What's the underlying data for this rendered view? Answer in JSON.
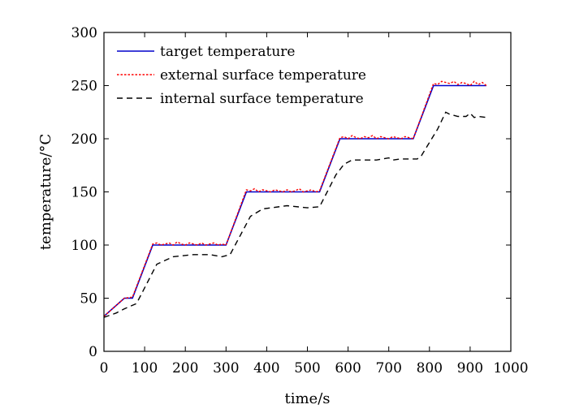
{
  "chart_data": {
    "type": "line",
    "xlabel": "time/s",
    "ylabel": "temperature/°C",
    "xlim": [
      0,
      1000
    ],
    "ylim": [
      0,
      300
    ],
    "xticks": [
      0,
      100,
      200,
      300,
      400,
      500,
      600,
      700,
      800,
      900,
      1000
    ],
    "yticks": [
      0,
      50,
      100,
      150,
      200,
      250,
      300
    ],
    "grid": false,
    "legend_position": "top-left",
    "series": [
      {
        "name": "target temperature",
        "color": "#0000cc",
        "style": "solid",
        "x": [
          0,
          50,
          70,
          120,
          300,
          350,
          530,
          580,
          760,
          810,
          940
        ],
        "y": [
          33,
          50,
          50,
          100,
          100,
          150,
          150,
          200,
          200,
          250,
          250
        ]
      },
      {
        "name": "external surface temperature",
        "color": "#ff0000",
        "style": "dotted",
        "x": [
          0,
          50,
          70,
          120,
          130,
          140,
          150,
          160,
          170,
          180,
          190,
          200,
          210,
          220,
          230,
          240,
          250,
          260,
          270,
          280,
          290,
          300,
          350,
          360,
          370,
          380,
          390,
          400,
          410,
          420,
          430,
          440,
          450,
          460,
          470,
          480,
          490,
          500,
          510,
          520,
          530,
          580,
          590,
          600,
          610,
          620,
          630,
          640,
          650,
          660,
          670,
          680,
          690,
          700,
          710,
          720,
          730,
          740,
          750,
          760,
          810,
          820,
          830,
          840,
          850,
          860,
          870,
          880,
          890,
          900,
          910,
          920,
          930,
          940
        ],
        "y": [
          33,
          50,
          51,
          101,
          102,
          100,
          101,
          102,
          100,
          103,
          101,
          100,
          102,
          101,
          100,
          102,
          100,
          101,
          102,
          100,
          101,
          100,
          152,
          151,
          153,
          150,
          152,
          151,
          150,
          152,
          151,
          150,
          152,
          150,
          151,
          153,
          150,
          151,
          152,
          150,
          151,
          201,
          202,
          200,
          203,
          201,
          200,
          202,
          201,
          203,
          200,
          202,
          201,
          200,
          202,
          201,
          200,
          202,
          201,
          200,
          252,
          251,
          254,
          253,
          252,
          254,
          251,
          253,
          252,
          250,
          254,
          251,
          253,
          250
        ]
      },
      {
        "name": "internal surface temperature",
        "color": "#000000",
        "style": "dashed",
        "x": [
          0,
          30,
          50,
          80,
          130,
          170,
          220,
          260,
          290,
          310,
          360,
          390,
          450,
          500,
          530,
          570,
          580,
          590,
          610,
          670,
          700,
          710,
          730,
          770,
          780,
          820,
          840,
          850,
          870,
          890,
          900,
          910,
          920,
          940
        ],
        "y": [
          32,
          36,
          40,
          45,
          82,
          89,
          91,
          91,
          89,
          91,
          127,
          134,
          137,
          135,
          136,
          166,
          171,
          176,
          180,
          180,
          182,
          180,
          181,
          181,
          184,
          209,
          225,
          223,
          221,
          221,
          224,
          220,
          221,
          220
        ]
      }
    ]
  }
}
